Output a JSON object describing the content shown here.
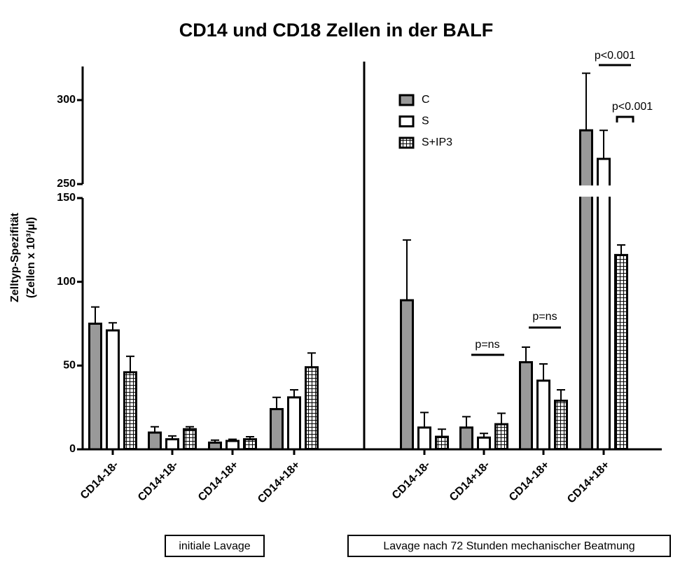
{
  "chart_data": {
    "type": "bar",
    "title": "CD14 und CD18 Zellen in der BALF",
    "y_label": [
      "Zelltyp-Spezifität",
      "(Zellen x 10³/µl)"
    ],
    "ylim": [
      0,
      320
    ],
    "ybreak": [
      150,
      250
    ],
    "yticks": [
      0,
      50,
      100,
      150,
      250,
      300
    ],
    "panel_labels": [
      "initiale Lavage",
      "Lavage nach 72 Stunden mechanischer Beatmung"
    ],
    "categories": [
      [
        "CD14-18-",
        "CD14+18-",
        "CD14-18+",
        "CD14+18+"
      ],
      [
        "CD14-18-",
        "CD14+18-",
        "CD14-18+",
        "CD14+18+"
      ]
    ],
    "series": [
      {
        "name": "C",
        "color": "#999999",
        "pattern": "solid",
        "values": [
          [
            75,
            10,
            4,
            24
          ],
          [
            89,
            13,
            52,
            282
          ]
        ],
        "errors": [
          [
            10,
            3.5,
            1.5,
            7
          ],
          [
            36,
            6.5,
            9,
            34
          ]
        ]
      },
      {
        "name": "S",
        "color": "#ffffff",
        "pattern": "solid",
        "values": [
          [
            71,
            6,
            5,
            31
          ],
          [
            13,
            7,
            41,
            265
          ]
        ],
        "errors": [
          [
            4.5,
            2,
            1,
            4.5
          ],
          [
            9,
            2.5,
            10,
            17
          ]
        ]
      },
      {
        "name": "S+IP3",
        "color": "#ffffff",
        "pattern": "grid",
        "values": [
          [
            46,
            12,
            6,
            49
          ],
          [
            7.5,
            15,
            29,
            116
          ]
        ],
        "errors": [
          [
            9.5,
            1.5,
            1.5,
            8.5
          ],
          [
            4.5,
            6.5,
            6.5,
            6
          ]
        ]
      }
    ],
    "annotations": [
      "p=ns",
      "p=ns",
      "p<0.001",
      "p<0.001"
    ]
  }
}
